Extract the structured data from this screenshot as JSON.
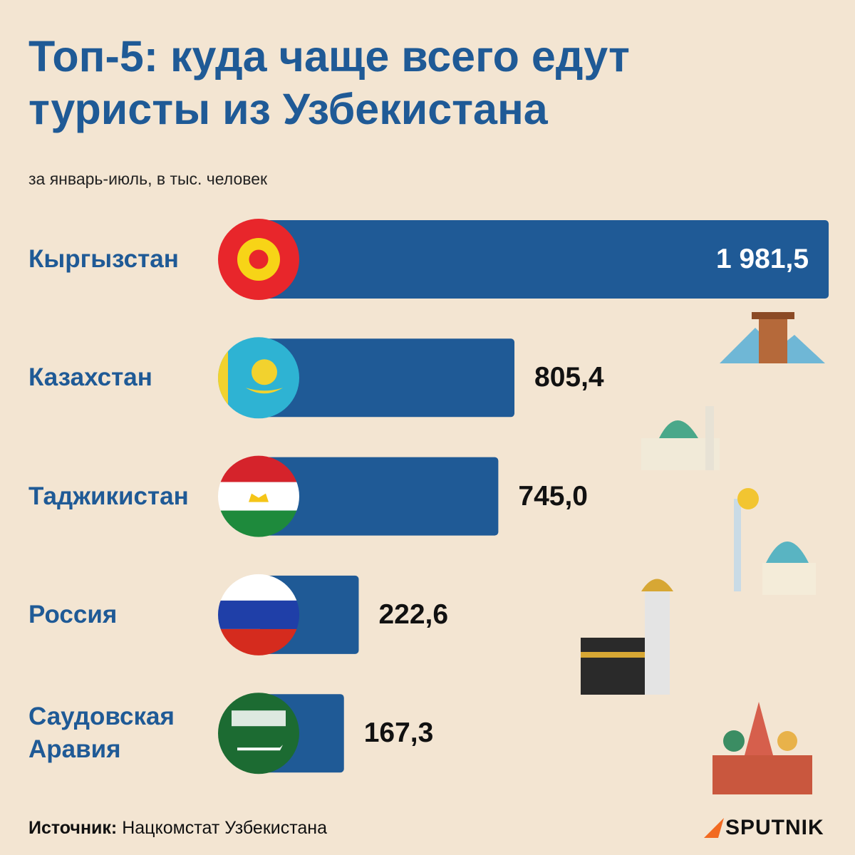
{
  "chart_data": {
    "type": "bar",
    "title": "Топ-5: куда чаще всего едут туристы из Узбекистана",
    "subtitle": "за январь-июль, в тыс. человек",
    "categories": [
      "Кыргызстан",
      "Казахстан",
      "Таджикистан",
      "Россия",
      "Саудовская Аравия"
    ],
    "values": [
      1981.5,
      805.4,
      745.0,
      222.6,
      167.3
    ],
    "value_labels": [
      "1 981,5",
      "805,4",
      "745,0",
      "222,6",
      "167,3"
    ],
    "color": "#1f5a96"
  },
  "footer": {
    "source_label": "Источник:",
    "source": "Нацкомстат Узбекистана",
    "logo": "SPUTNIK"
  }
}
